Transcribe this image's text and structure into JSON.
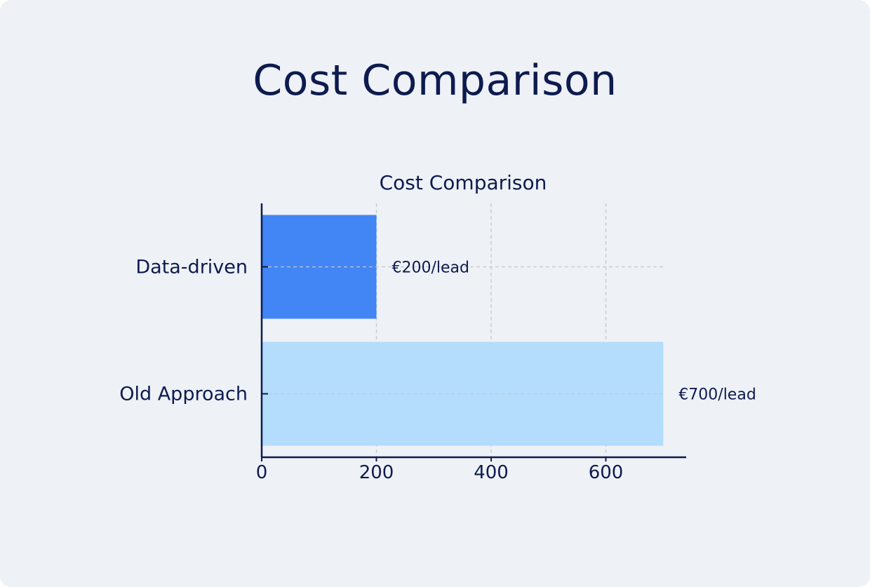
{
  "page": {
    "title": "Cost Comparison"
  },
  "chart_data": {
    "type": "bar",
    "orientation": "horizontal",
    "title": "Cost Comparison",
    "categories": [
      "Data-driven",
      "Old Approach"
    ],
    "values": [
      200,
      700
    ],
    "data_labels": [
      "€200/lead",
      "€700/lead"
    ],
    "xlim": [
      0,
      740
    ],
    "xticks": [
      0,
      200,
      400,
      600
    ],
    "grid": true,
    "colors": [
      "#4285f4",
      "#b3dcfd"
    ],
    "axis_color": "#0d1b4f"
  }
}
